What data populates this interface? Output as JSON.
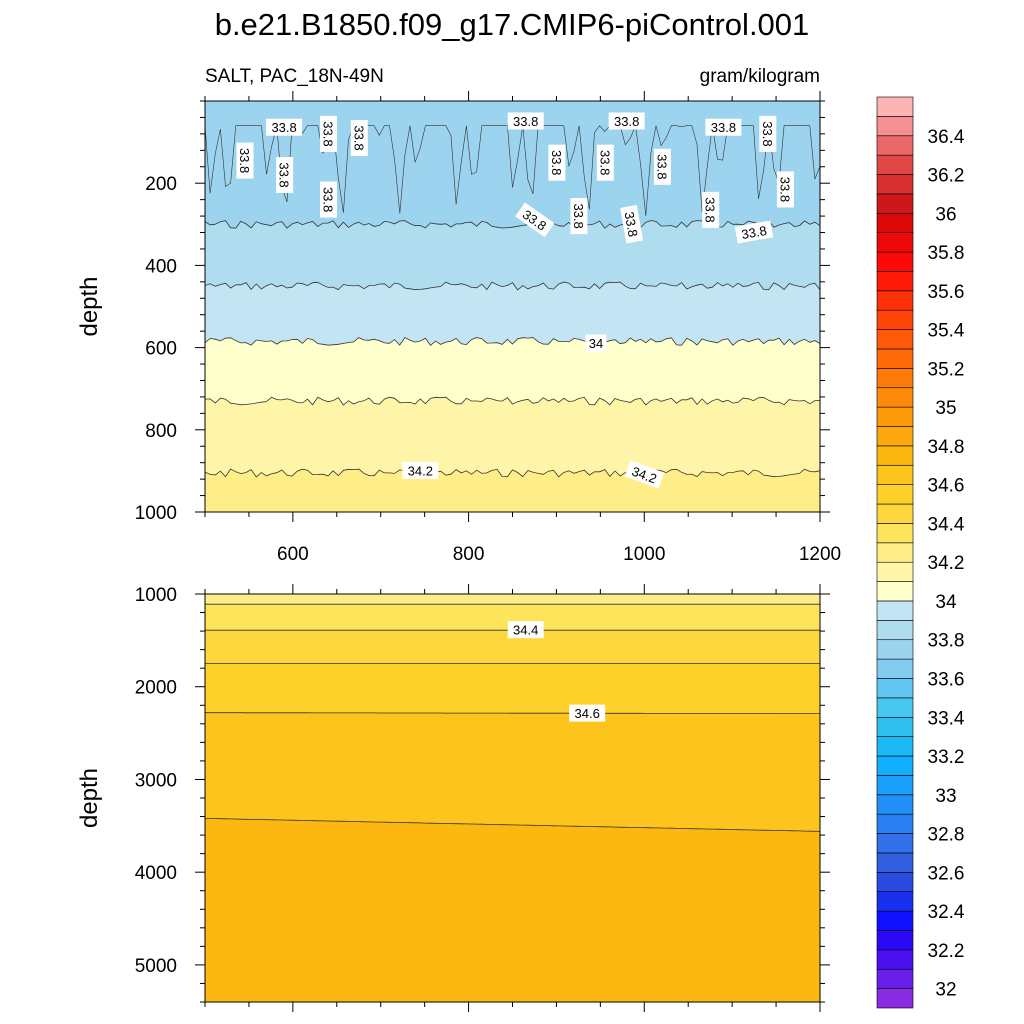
{
  "title": "b.e21.B1850.f09_g17.CMIP6-piControl.001",
  "chart_data": [
    {
      "type": "contour",
      "panel": "upper",
      "variable_label": "SALT, PAC_18N-49N",
      "units_label": "gram/kilogram",
      "ylabel": "depth",
      "xlim": [
        500,
        1200
      ],
      "ylim": [
        1000,
        0
      ],
      "y_reversed": true,
      "x_ticks": [
        600,
        800,
        1000,
        1200
      ],
      "x_tick_labels": [
        "600",
        "800",
        "1000",
        "1200"
      ],
      "y_ticks": [
        200,
        400,
        600,
        800,
        1000
      ],
      "y_tick_labels": [
        "200",
        "400",
        "600",
        "800",
        "1000"
      ],
      "contour_interval": 0.1,
      "contour_lines": [
        {
          "level": 33.7,
          "depth": 0
        },
        {
          "level": 33.8,
          "depth": 300
        },
        {
          "level": 33.9,
          "depth": 450
        },
        {
          "level": 34.0,
          "depth": 585
        },
        {
          "level": 34.1,
          "depth": 730
        },
        {
          "level": 34.2,
          "depth": 905
        }
      ],
      "contour_labels": [
        {
          "text": "33.8",
          "x": 545,
          "y": 145,
          "angle": 90
        },
        {
          "text": "33.8",
          "x": 590,
          "y": 65,
          "angle": 0
        },
        {
          "text": "33.8",
          "x": 590,
          "y": 180,
          "angle": 90
        },
        {
          "text": "33.8",
          "x": 640,
          "y": 80,
          "angle": 90
        },
        {
          "text": "33.8",
          "x": 640,
          "y": 240,
          "angle": 90
        },
        {
          "text": "33.8",
          "x": 675,
          "y": 90,
          "angle": 90
        },
        {
          "text": "33.8",
          "x": 865,
          "y": 50,
          "angle": 0
        },
        {
          "text": "33.8",
          "x": 875,
          "y": 290,
          "angle": 35
        },
        {
          "text": "33.8",
          "x": 900,
          "y": 150,
          "angle": 90
        },
        {
          "text": "33.8",
          "x": 925,
          "y": 280,
          "angle": 90
        },
        {
          "text": "33.8",
          "x": 955,
          "y": 150,
          "angle": 90
        },
        {
          "text": "33.8",
          "x": 980,
          "y": 50,
          "angle": 0
        },
        {
          "text": "33.8",
          "x": 985,
          "y": 300,
          "angle": 80
        },
        {
          "text": "33.8",
          "x": 1020,
          "y": 160,
          "angle": 90
        },
        {
          "text": "33.8",
          "x": 1075,
          "y": 265,
          "angle": 90
        },
        {
          "text": "33.8",
          "x": 1090,
          "y": 65,
          "angle": 0
        },
        {
          "text": "33.8",
          "x": 1125,
          "y": 320,
          "angle": -10
        },
        {
          "text": "33.8",
          "x": 1140,
          "y": 80,
          "angle": 90
        },
        {
          "text": "33.8",
          "x": 1160,
          "y": 215,
          "angle": 90
        },
        {
          "text": "34",
          "x": 945,
          "y": 590,
          "angle": 0
        },
        {
          "text": "34.2",
          "x": 745,
          "y": 900,
          "angle": 0
        },
        {
          "text": "34.2",
          "x": 1000,
          "y": 910,
          "angle": 20
        }
      ]
    },
    {
      "type": "contour",
      "panel": "lower",
      "ylabel": "depth",
      "xlim": [
        500,
        1200
      ],
      "ylim": [
        5400,
        1000
      ],
      "y_reversed": true,
      "x_ticks": [
        600,
        800,
        1000,
        1200
      ],
      "x_tick_labels": [
        "",
        "",
        "",
        ""
      ],
      "y_ticks": [
        1000,
        2000,
        3000,
        4000,
        5000
      ],
      "y_tick_labels": [
        "1000",
        "2000",
        "3000",
        "4000",
        "5000"
      ],
      "contour_interval": 0.1,
      "contour_lines": [
        {
          "level": 34.3,
          "depth_left": 1110,
          "depth_right": 1110
        },
        {
          "level": 34.4,
          "depth_left": 1390,
          "depth_right": 1390
        },
        {
          "level": 34.5,
          "depth_left": 1750,
          "depth_right": 1750
        },
        {
          "level": 34.6,
          "depth_left": 2280,
          "depth_right": 2290
        },
        {
          "level": 34.7,
          "depth_left": 3420,
          "depth_right": 3560
        }
      ],
      "contour_labels": [
        {
          "text": "34.4",
          "x": 865,
          "y": 1390,
          "angle": 0
        },
        {
          "text": "34.6",
          "x": 935,
          "y": 2290,
          "angle": 0
        }
      ]
    }
  ],
  "colorbar": {
    "levels": [
      32,
      32.1,
      32.2,
      32.3,
      32.4,
      32.5,
      32.6,
      32.7,
      32.8,
      32.9,
      33,
      33.1,
      33.2,
      33.3,
      33.4,
      33.5,
      33.6,
      33.7,
      33.8,
      33.9,
      34,
      34.1,
      34.2,
      34.3,
      34.4,
      34.5,
      34.6,
      34.7,
      34.8,
      34.9,
      35,
      35.1,
      35.2,
      35.3,
      35.4,
      35.5,
      35.6,
      35.7,
      35.8,
      35.9,
      36,
      36.1,
      36.2,
      36.3,
      36.4,
      36.5
    ],
    "labels": [
      "32",
      "32.2",
      "32.4",
      "32.6",
      "32.8",
      "33",
      "33.2",
      "33.4",
      "33.6",
      "33.8",
      "34",
      "34.2",
      "34.4",
      "34.6",
      "34.8",
      "35",
      "35.2",
      "35.4",
      "35.6",
      "35.8",
      "36",
      "36.2",
      "36.4"
    ],
    "colors": [
      "#8a2be2",
      "#6a1fe8",
      "#4b10f0",
      "#2c08f8",
      "#1010ff",
      "#1a30f0",
      "#2a4ae0",
      "#3060e0",
      "#3070e8",
      "#2a80f0",
      "#2090f8",
      "#1aa0fc",
      "#10b0ff",
      "#1ab8f5",
      "#30c0f0",
      "#48c8f0",
      "#62c6f2",
      "#82ccf0",
      "#9cd4ef",
      "#b0dcf0",
      "#c3e4f3",
      "#ffffcc",
      "#fff5a8",
      "#ffee88",
      "#fde45a",
      "#fcd83e",
      "#fdd02a",
      "#fcc41c",
      "#fcb810",
      "#fca80a",
      "#fd9a08",
      "#fd8a08",
      "#fd7a08",
      "#fd6a08",
      "#fe5808",
      "#fe4408",
      "#fe3008",
      "#fe1c08",
      "#fe0808",
      "#ee0808",
      "#dc0808",
      "#cc1818",
      "#d83030",
      "#e04848",
      "#ea6868",
      "#f49090",
      "#fcb4b4"
    ]
  }
}
